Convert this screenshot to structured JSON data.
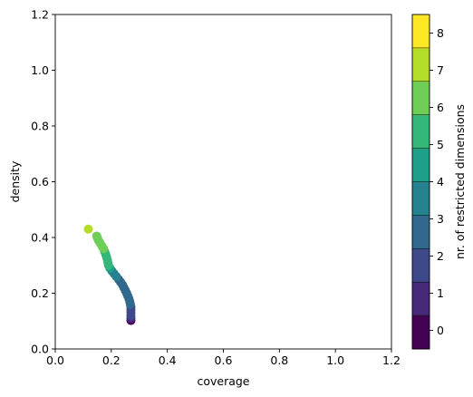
{
  "chart_data": {
    "type": "scatter",
    "xlabel": "coverage",
    "ylabel": "density",
    "xlim": [
      0.0,
      1.2
    ],
    "ylim": [
      0.0,
      1.2
    ],
    "x_ticks": [
      "0.0",
      "0.2",
      "0.4",
      "0.6",
      "0.8",
      "1.0",
      "1.2"
    ],
    "y_ticks": [
      "0.0",
      "0.2",
      "0.4",
      "0.6",
      "0.8",
      "1.0",
      "1.2"
    ],
    "grid": false,
    "colorbar": {
      "label": "nr. of restricted dimensions",
      "ticks": [
        "0",
        "1",
        "2",
        "3",
        "4",
        "5",
        "6",
        "7",
        "8"
      ],
      "colors": [
        "#440154",
        "#482878",
        "#3e4989",
        "#31688e",
        "#26828e",
        "#1f9e89",
        "#35b779",
        "#6ece58",
        "#b5de2b",
        "#fde725"
      ]
    },
    "points": [
      {
        "x": 0.27,
        "y": 0.102,
        "dims": 0
      },
      {
        "x": 0.27,
        "y": 0.11,
        "dims": 1
      },
      {
        "x": 0.27,
        "y": 0.12,
        "dims": 2
      },
      {
        "x": 0.27,
        "y": 0.13,
        "dims": 2
      },
      {
        "x": 0.27,
        "y": 0.14,
        "dims": 2
      },
      {
        "x": 0.27,
        "y": 0.15,
        "dims": 2
      },
      {
        "x": 0.268,
        "y": 0.16,
        "dims": 3
      },
      {
        "x": 0.266,
        "y": 0.17,
        "dims": 3
      },
      {
        "x": 0.263,
        "y": 0.18,
        "dims": 3
      },
      {
        "x": 0.259,
        "y": 0.19,
        "dims": 3
      },
      {
        "x": 0.255,
        "y": 0.2,
        "dims": 3
      },
      {
        "x": 0.25,
        "y": 0.21,
        "dims": 3
      },
      {
        "x": 0.245,
        "y": 0.22,
        "dims": 3
      },
      {
        "x": 0.24,
        "y": 0.23,
        "dims": 3
      },
      {
        "x": 0.233,
        "y": 0.24,
        "dims": 3
      },
      {
        "x": 0.226,
        "y": 0.25,
        "dims": 3
      },
      {
        "x": 0.218,
        "y": 0.26,
        "dims": 4
      },
      {
        "x": 0.21,
        "y": 0.27,
        "dims": 4
      },
      {
        "x": 0.202,
        "y": 0.28,
        "dims": 4
      },
      {
        "x": 0.195,
        "y": 0.29,
        "dims": 5
      },
      {
        "x": 0.19,
        "y": 0.3,
        "dims": 6
      },
      {
        "x": 0.188,
        "y": 0.31,
        "dims": 6
      },
      {
        "x": 0.186,
        "y": 0.32,
        "dims": 6
      },
      {
        "x": 0.183,
        "y": 0.33,
        "dims": 6
      },
      {
        "x": 0.18,
        "y": 0.34,
        "dims": 6
      },
      {
        "x": 0.176,
        "y": 0.35,
        "dims": 6
      },
      {
        "x": 0.172,
        "y": 0.36,
        "dims": 7
      },
      {
        "x": 0.166,
        "y": 0.37,
        "dims": 7
      },
      {
        "x": 0.16,
        "y": 0.38,
        "dims": 7
      },
      {
        "x": 0.154,
        "y": 0.39,
        "dims": 7
      },
      {
        "x": 0.15,
        "y": 0.4,
        "dims": 7
      },
      {
        "x": 0.148,
        "y": 0.405,
        "dims": 7
      },
      {
        "x": 0.118,
        "y": 0.43,
        "dims": 8
      }
    ]
  }
}
